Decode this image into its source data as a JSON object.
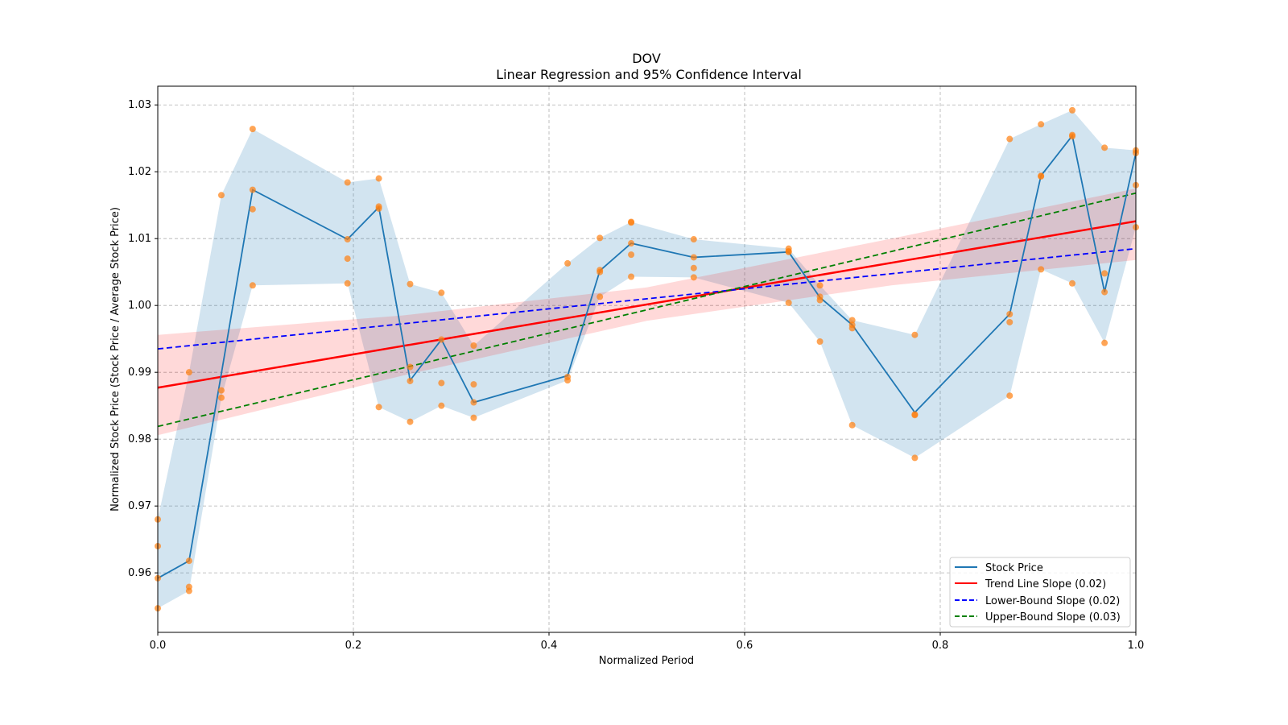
{
  "chart_data": {
    "type": "line",
    "title": "DOV",
    "subtitle": "Linear Regression and 95% Confidence Interval",
    "xlabel": "Normalized Period",
    "ylabel": "Normalized Stock Price (Stock Price / Average Stock Price)",
    "xlim": [
      0,
      1.0
    ],
    "ylim": [
      0.9511,
      1.0328
    ],
    "xticks": [
      "0.0",
      "0.2",
      "0.4",
      "0.6",
      "0.8",
      "1.0"
    ],
    "xtick_values": [
      0,
      0.2,
      0.4,
      0.6,
      0.8,
      1.0
    ],
    "yticks": [
      "0.96",
      "0.97",
      "0.98",
      "0.99",
      "1.00",
      "1.01",
      "1.02",
      "1.03"
    ],
    "ytick_values": [
      0.96,
      0.97,
      0.98,
      0.99,
      1.0,
      1.01,
      1.02,
      1.03
    ],
    "grid": true,
    "legend_position": "bottom-right",
    "legend": [
      "Stock Price",
      "Trend Line Slope (0.02)",
      "Lower-Bound Slope (0.02)",
      "Upper-Bound Slope (0.03)"
    ],
    "colors": {
      "stock": "#1f77b4",
      "band": "#1f77b4",
      "scatter": "#ff7f0e",
      "trend": "#ff0000",
      "lower": "#0000ff",
      "upper": "#008000"
    },
    "x": [
      0,
      0.032,
      0.065,
      0.097,
      0.194,
      0.226,
      0.258,
      0.29,
      0.323,
      0.419,
      0.452,
      0.484,
      0.548,
      0.645,
      0.677,
      0.71,
      0.774,
      0.871,
      0.903,
      0.935,
      0.968,
      1.0
    ],
    "stock_price": [
      0.9592,
      0.9618,
      0.9898,
      1.0173,
      1.0099,
      1.0147,
      0.9888,
      0.9949,
      0.9855,
      0.9895,
      1.0052,
      1.0093,
      1.0072,
      1.008,
      1.0012,
      0.9971,
      0.984,
      0.9987,
      1.0194,
      1.0254,
      1.002,
      1.0228
    ],
    "scatter": [
      [
        0.968,
        0.964,
        0.9592,
        0.9547
      ],
      [
        0.99,
        0.9618,
        0.9579,
        0.9573
      ],
      [
        1.0165,
        0.9873,
        0.9862
      ],
      [
        1.0264,
        1.0173,
        1.0144,
        1.003
      ],
      [
        1.0184,
        1.0099,
        1.007,
        1.0033
      ],
      [
        1.019,
        1.0148,
        1.0145,
        0.9848
      ],
      [
        1.0032,
        0.9908,
        0.9887,
        0.9826
      ],
      [
        1.0019,
        0.9949,
        0.9884,
        0.985
      ],
      [
        0.994,
        0.9882,
        0.9855,
        0.9832
      ],
      [
        1.0063,
        0.9893,
        0.9888
      ],
      [
        1.0101,
        1.0053,
        1.005,
        1.0013
      ],
      [
        1.0125,
        1.0124,
        1.0093,
        1.0076,
        1.0043
      ],
      [
        1.0099,
        1.0072,
        1.0056,
        1.0042
      ],
      [
        1.0085,
        1.0081,
        1.008,
        1.0004
      ],
      [
        1.003,
        1.0013,
        1.0008,
        0.9946
      ],
      [
        0.9978,
        0.9971,
        0.9966,
        0.9821
      ],
      [
        0.9956,
        0.9837,
        0.9836,
        0.9772
      ],
      [
        1.0249,
        0.9987,
        0.9975,
        0.9865
      ],
      [
        1.0271,
        1.0194,
        1.0193,
        1.0054
      ],
      [
        1.0292,
        1.0255,
        1.0253,
        1.0033
      ],
      [
        1.0236,
        1.0048,
        1.002,
        0.9944
      ],
      [
        1.0232,
        1.0228,
        1.018,
        1.0117
      ]
    ],
    "trend_line": {
      "y_at_0": 0.9877,
      "y_at_1": 1.0126
    },
    "lower_bound_line": {
      "y_at_0": 0.9935,
      "y_at_1": 1.0085
    },
    "upper_bound_line": {
      "y_at_0": 0.9819,
      "y_at_1": 1.0168
    },
    "trend_ci": {
      "x": [
        0,
        0.25,
        0.5,
        0.75,
        1.0
      ],
      "lower": [
        0.9806,
        0.9895,
        0.9977,
        1.003,
        1.0068
      ],
      "upper": [
        0.9956,
        0.9985,
        1.0027,
        1.01,
        1.0175
      ]
    }
  }
}
